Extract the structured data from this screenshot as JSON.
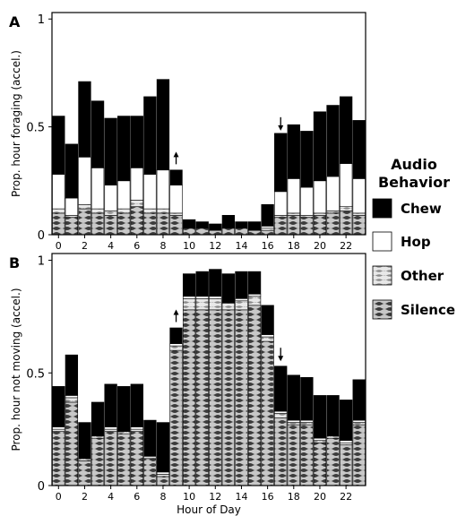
{
  "legend": {
    "title": "Audio\nBehavior",
    "items": [
      {
        "label": "Chew",
        "key": "chew"
      },
      {
        "label": "Hop",
        "key": "hop"
      },
      {
        "label": "Other",
        "key": "other"
      },
      {
        "label": "Silence",
        "key": "silence"
      }
    ]
  },
  "colors": {
    "chew": "#000000",
    "hop": "#ffffff",
    "stripe_dark": "#4a4a4a",
    "stripe_light": "#c8c8c8",
    "frame": "#000000"
  },
  "chart_data": [
    {
      "panel": "A",
      "type": "bar",
      "stacked": true,
      "ylabel": "Prop. hour foraging (accel.)",
      "xlabel": "",
      "x": [
        0,
        1,
        2,
        3,
        4,
        5,
        6,
        7,
        8,
        9,
        10,
        11,
        12,
        13,
        14,
        15,
        16,
        17,
        18,
        19,
        20,
        21,
        22,
        23
      ],
      "xticks": [
        "0",
        "2",
        "4",
        "6",
        "8",
        "10",
        "12",
        "14",
        "16",
        "18",
        "20",
        "22"
      ],
      "yticks": [
        "0",
        "0.5",
        "1"
      ],
      "ylim": [
        0,
        1.03
      ],
      "series": [
        {
          "key": "silence",
          "name": "Silence",
          "values": [
            0.1,
            0.08,
            0.12,
            0.1,
            0.09,
            0.1,
            0.13,
            0.1,
            0.1,
            0.09,
            0.03,
            0.03,
            0.02,
            0.03,
            0.03,
            0.02,
            0.02,
            0.08,
            0.09,
            0.08,
            0.09,
            0.1,
            0.11,
            0.09
          ]
        },
        {
          "key": "other",
          "name": "Other",
          "values": [
            0.02,
            0.01,
            0.02,
            0.02,
            0.02,
            0.02,
            0.03,
            0.02,
            0.02,
            0.01,
            0.0,
            0.0,
            0.0,
            0.0,
            0.0,
            0.0,
            0.01,
            0.01,
            0.01,
            0.01,
            0.01,
            0.01,
            0.02,
            0.01
          ]
        },
        {
          "key": "hop",
          "name": "Hop",
          "values": [
            0.16,
            0.08,
            0.22,
            0.19,
            0.12,
            0.13,
            0.15,
            0.16,
            0.18,
            0.13,
            0.0,
            0.0,
            0.0,
            0.0,
            0.0,
            0.0,
            0.01,
            0.11,
            0.16,
            0.13,
            0.15,
            0.16,
            0.2,
            0.16
          ]
        },
        {
          "key": "chew",
          "name": "Chew",
          "values": [
            0.27,
            0.25,
            0.35,
            0.31,
            0.31,
            0.3,
            0.24,
            0.36,
            0.42,
            0.07,
            0.04,
            0.03,
            0.03,
            0.06,
            0.03,
            0.04,
            0.1,
            0.27,
            0.25,
            0.26,
            0.32,
            0.33,
            0.31,
            0.27
          ]
        }
      ],
      "arrows": [
        {
          "x": 9,
          "direction": "up",
          "at": 0.31
        },
        {
          "x": 17,
          "direction": "down",
          "at": 0.47
        }
      ]
    },
    {
      "panel": "B",
      "type": "bar",
      "stacked": true,
      "ylabel": "Prop. hour not moving (accel.)",
      "xlabel": "Hour of Day",
      "x": [
        0,
        1,
        2,
        3,
        4,
        5,
        6,
        7,
        8,
        9,
        10,
        11,
        12,
        13,
        14,
        15,
        16,
        17,
        18,
        19,
        20,
        21,
        22,
        23
      ],
      "xticks": [
        "0",
        "2",
        "4",
        "6",
        "8",
        "10",
        "12",
        "14",
        "16",
        "18",
        "20",
        "22"
      ],
      "yticks": [
        "0",
        "0.5",
        "1"
      ],
      "ylim": [
        0,
        1.03
      ],
      "series": [
        {
          "key": "silence",
          "name": "Silence",
          "values": [
            0.24,
            0.37,
            0.11,
            0.21,
            0.24,
            0.23,
            0.24,
            0.12,
            0.04,
            0.6,
            0.78,
            0.78,
            0.78,
            0.78,
            0.78,
            0.8,
            0.64,
            0.3,
            0.27,
            0.27,
            0.19,
            0.21,
            0.18,
            0.27
          ]
        },
        {
          "key": "other",
          "name": "Other",
          "values": [
            0.01,
            0.02,
            0.01,
            0.01,
            0.01,
            0.01,
            0.01,
            0.01,
            0.01,
            0.02,
            0.05,
            0.05,
            0.05,
            0.03,
            0.04,
            0.04,
            0.02,
            0.02,
            0.01,
            0.01,
            0.01,
            0.01,
            0.01,
            0.01
          ]
        },
        {
          "key": "hop",
          "name": "Hop",
          "values": [
            0.01,
            0.01,
            0.0,
            0.0,
            0.01,
            0.0,
            0.01,
            0.0,
            0.01,
            0.01,
            0.01,
            0.01,
            0.01,
            0.0,
            0.01,
            0.01,
            0.01,
            0.01,
            0.01,
            0.01,
            0.01,
            0.0,
            0.01,
            0.01
          ]
        },
        {
          "key": "chew",
          "name": "Chew",
          "values": [
            0.18,
            0.18,
            0.16,
            0.15,
            0.19,
            0.2,
            0.19,
            0.16,
            0.22,
            0.07,
            0.1,
            0.11,
            0.12,
            0.13,
            0.12,
            0.1,
            0.13,
            0.2,
            0.2,
            0.19,
            0.19,
            0.18,
            0.18,
            0.18
          ]
        }
      ],
      "arrows": [
        {
          "x": 9,
          "direction": "up",
          "at": 0.71
        },
        {
          "x": 17,
          "direction": "down",
          "at": 0.54
        }
      ]
    }
  ]
}
